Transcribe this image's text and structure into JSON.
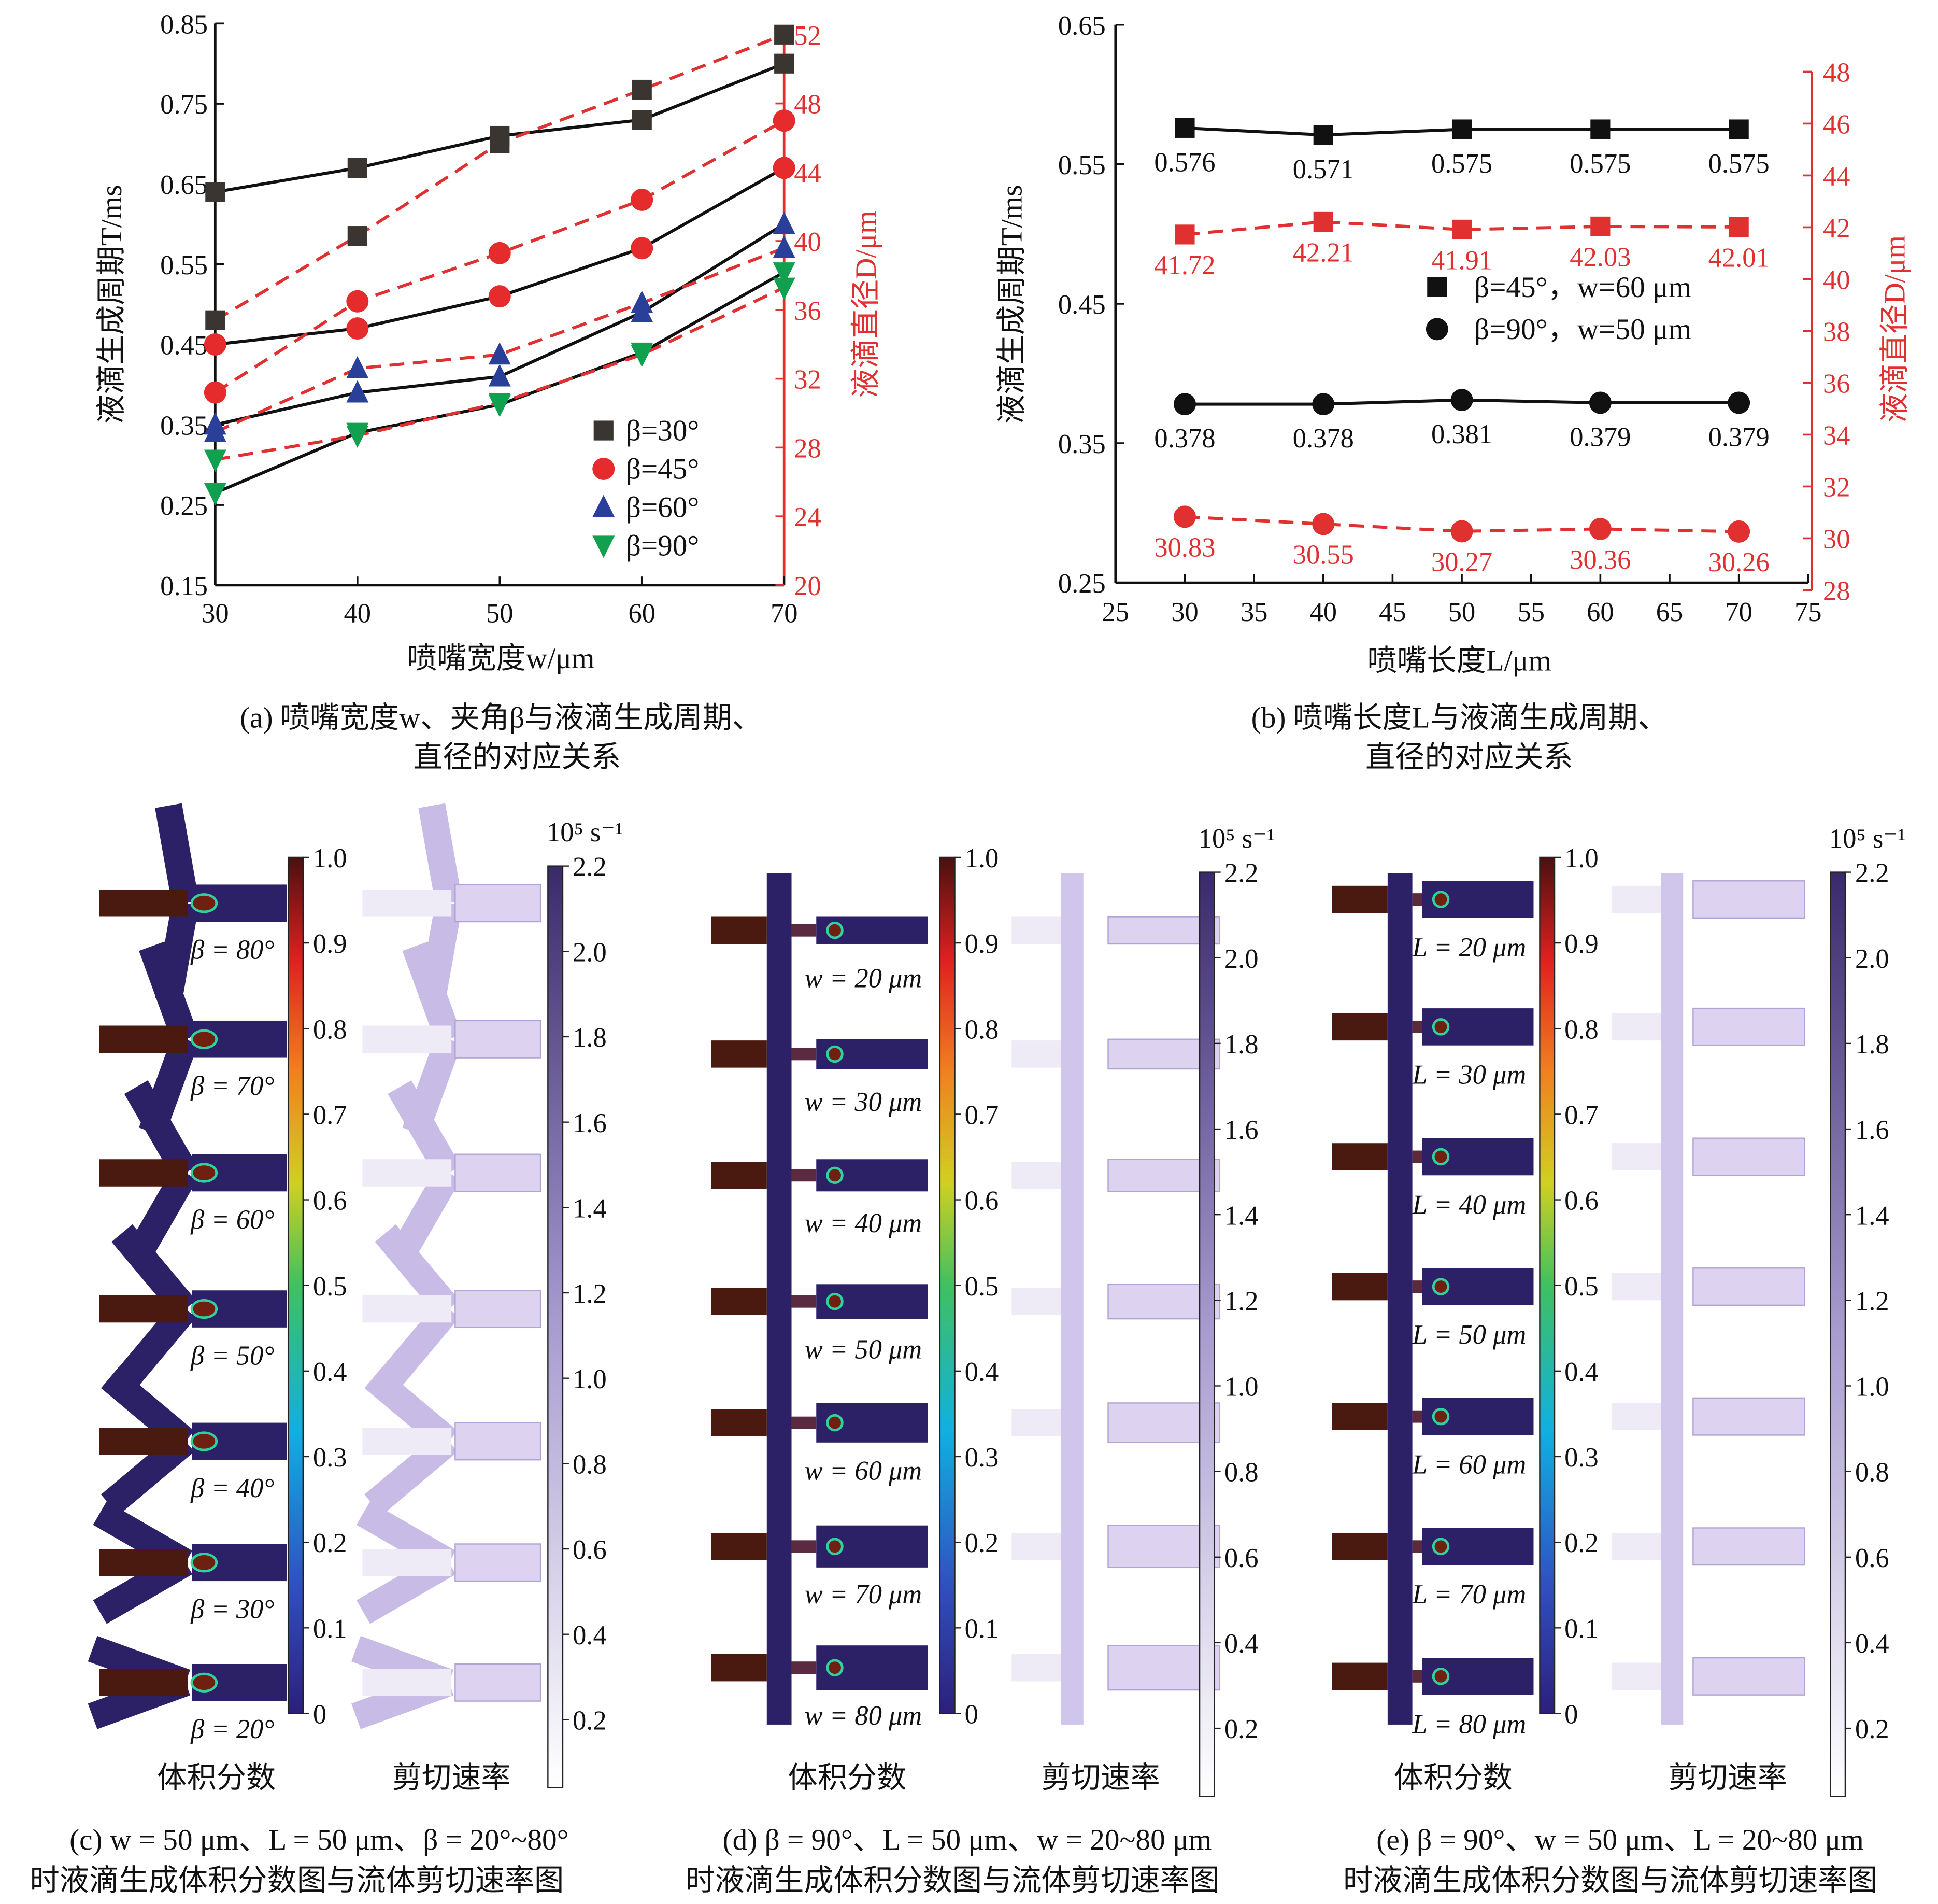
{
  "chart_data": [
    {
      "type": "line",
      "panel": "a",
      "xlabel": "喷嘴宽度w/μm",
      "ylabel": "液滴生成周期T/ms",
      "y2label": "液滴直径D/μm",
      "caption": [
        "(a) 喷嘴宽度w、夹角β与液滴生成周期、",
        "直径的对应关系"
      ],
      "x": [
        30,
        40,
        50,
        60,
        70
      ],
      "xlim": [
        30,
        70
      ],
      "ylim": [
        0.15,
        0.85
      ],
      "y2lim": [
        20,
        52
      ],
      "xticks": [
        "30",
        "40",
        "50",
        "60",
        "70"
      ],
      "yticks": [
        "0.15",
        "0.25",
        "0.35",
        "0.45",
        "0.55",
        "0.65",
        "0.75",
        "0.85"
      ],
      "y2ticks": [
        "20",
        "24",
        "28",
        "32",
        "36",
        "40",
        "44",
        "48",
        "52"
      ],
      "legend_position": "bottom-right",
      "series": [
        {
          "name": "β=30°",
          "marker": "square",
          "color": "#3a3530",
          "T": [
            0.64,
            0.67,
            0.71,
            0.73,
            0.8
          ],
          "D": [
            35.4,
            40.3,
            45.7,
            48.8,
            52.0
          ]
        },
        {
          "name": "β=45°",
          "marker": "circle",
          "color": "#e52b2b",
          "T": [
            0.45,
            0.47,
            0.51,
            0.57,
            0.67
          ],
          "D": [
            31.2,
            36.5,
            39.3,
            42.4,
            47.0
          ]
        },
        {
          "name": "β=60°",
          "marker": "triangle-up",
          "color": "#2a3f9a",
          "T": [
            0.35,
            0.39,
            0.41,
            0.49,
            0.6
          ],
          "D": [
            28.9,
            32.6,
            33.4,
            36.4,
            39.6
          ]
        },
        {
          "name": "β=90°",
          "marker": "triangle-down",
          "color": "#10a050",
          "T": [
            0.265,
            0.34,
            0.375,
            0.44,
            0.54
          ],
          "D": [
            27.3,
            28.7,
            30.6,
            33.4,
            37.3
          ]
        }
      ]
    },
    {
      "type": "line",
      "panel": "b",
      "xlabel": "喷嘴长度L/μm",
      "ylabel": "液滴生成周期T/ms",
      "y2label": "液滴直径D/μm",
      "caption": [
        "(b) 喷嘴长度L与液滴生成周期、",
        "直径的对应关系"
      ],
      "x": [
        30,
        40,
        50,
        60,
        70
      ],
      "xlim": [
        25,
        75
      ],
      "ylim": [
        0.25,
        0.65
      ],
      "y2lim": [
        28,
        48
      ],
      "xticks": [
        "25",
        "30",
        "35",
        "40",
        "45",
        "50",
        "55",
        "60",
        "65",
        "70",
        "75"
      ],
      "yticks": [
        "0.25",
        "0.35",
        "0.45",
        "0.55",
        "0.65"
      ],
      "y2ticks": [
        "28",
        "30",
        "32",
        "34",
        "36",
        "38",
        "40",
        "42",
        "44",
        "46",
        "48"
      ],
      "legend_position": "center-right",
      "series": [
        {
          "name": "β=45°，w=60 μm",
          "marker": "square",
          "T": [
            0.576,
            0.571,
            0.575,
            0.575,
            0.575
          ],
          "T_labels": [
            "0.576",
            "0.571",
            "0.575",
            "0.575",
            "0.575"
          ],
          "D": [
            41.72,
            42.21,
            41.91,
            42.03,
            42.01
          ],
          "D_labels": [
            "41.72",
            "42.21",
            "41.91",
            "42.03",
            "42.01"
          ]
        },
        {
          "name": "β=90°，w=50 μm",
          "marker": "circle",
          "T": [
            0.378,
            0.378,
            0.381,
            0.379,
            0.379
          ],
          "T_labels": [
            "0.378",
            "0.378",
            "0.381",
            "0.379",
            "0.379"
          ],
          "D": [
            30.83,
            30.55,
            30.27,
            30.36,
            30.26
          ],
          "D_labels": [
            "30.83",
            "30.55",
            "30.27",
            "30.36",
            "30.26"
          ]
        }
      ]
    }
  ],
  "panels": {
    "vf_ticks": [
      "1.0",
      "0.9",
      "0.8",
      "0.7",
      "0.6",
      "0.5",
      "0.4",
      "0.3",
      "0.2",
      "0.1",
      "0"
    ],
    "sr_ticks": [
      "2.2",
      "2.0",
      "1.8",
      "1.6",
      "1.4",
      "1.2",
      "1.0",
      "0.8",
      "0.6",
      "0.4",
      "0.2"
    ],
    "sr_unit": "10⁵ s⁻¹",
    "vf_label": "体积分数",
    "sr_label": "剪切速率",
    "c": {
      "rows": [
        "β = 80°",
        "β = 70°",
        "β = 60°",
        "β = 50°",
        "β = 40°",
        "β = 30°",
        "β = 20°"
      ],
      "caption": [
        "(c) w = 50 μm、L = 50 μm、β = 20°~80°",
        "时液滴生成体积分数图与流体剪切速率图"
      ]
    },
    "d": {
      "rows": [
        "w = 20 μm",
        "w = 30 μm",
        "w = 40 μm",
        "w = 50 μm",
        "w = 60 μm",
        "w = 70 μm",
        "w = 80 μm"
      ],
      "caption": [
        "(d) β = 90°、L = 50 μm、w = 20~80 μm",
        "时液滴生成体积分数图与流体剪切速率图"
      ]
    },
    "e": {
      "rows": [
        "L = 20 μm",
        "L = 30 μm",
        "L = 40 μm",
        "L = 50 μm",
        "L = 60 μm",
        "L = 70 μm",
        "L = 80 μm"
      ],
      "caption": [
        "(e) β = 90°、w = 50 μm、L = 20~80 μm",
        "时液滴生成体积分数图与流体剪切速率图"
      ]
    }
  },
  "colors": {
    "dispersed": "#4a1a10",
    "continuous": "#2c2166",
    "shear_bg": "#ddd3f0",
    "red_axis": "#e03030"
  }
}
